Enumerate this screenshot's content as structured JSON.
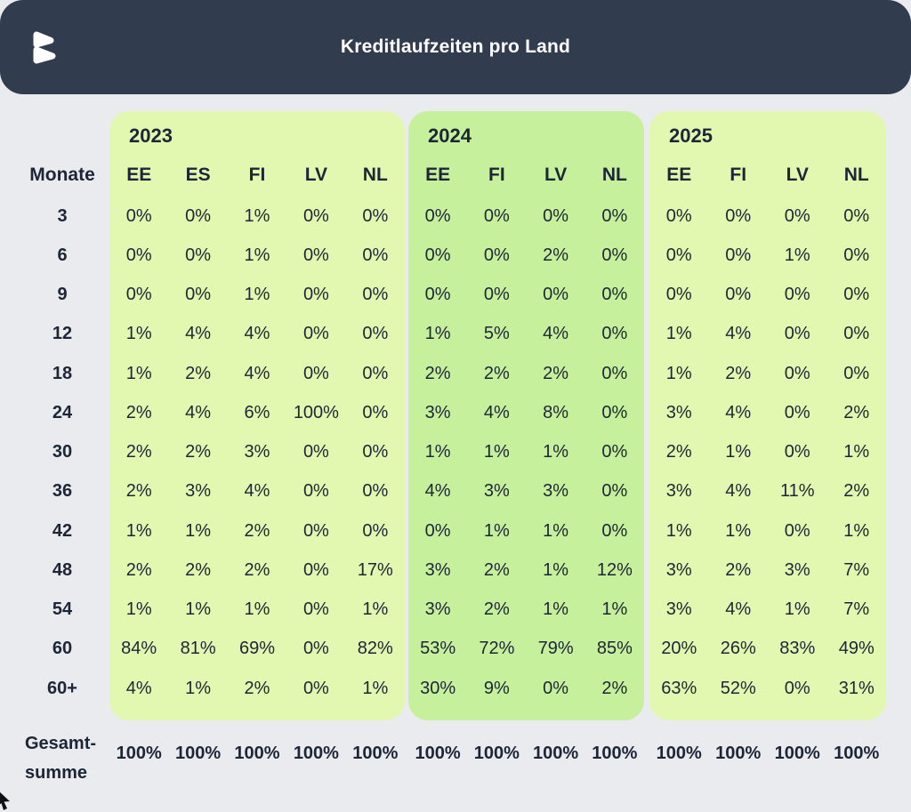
{
  "header": {
    "title": "Kreditlaufzeiten pro Land",
    "logo": "bondora-b-logo"
  },
  "table": {
    "monate_label": "Monate",
    "total_label_lines": [
      "Gesamt-",
      "summe"
    ]
  },
  "colors": {
    "page_bg": "#eaebef",
    "header_bg": "#313c4f",
    "header_text": "#ffffff",
    "panel_light": "#e2f8b0",
    "panel_green": "#c7f09d",
    "text": "#1d2636"
  },
  "chart_data": {
    "type": "table",
    "title": "Kreditlaufzeiten pro Land",
    "row_label_header": "Monate",
    "rows": [
      "3",
      "6",
      "9",
      "12",
      "18",
      "24",
      "30",
      "36",
      "42",
      "48",
      "54",
      "60",
      "60+"
    ],
    "total_row_label": "Gesamtsumme",
    "groups": [
      {
        "year": "2023",
        "panel_tone": "light",
        "countries": [
          "EE",
          "ES",
          "FI",
          "LV",
          "NL"
        ],
        "values": [
          [
            "0%",
            "0%",
            "1%",
            "0%",
            "0%"
          ],
          [
            "0%",
            "0%",
            "1%",
            "0%",
            "0%"
          ],
          [
            "0%",
            "0%",
            "1%",
            "0%",
            "0%"
          ],
          [
            "1%",
            "4%",
            "4%",
            "0%",
            "0%"
          ],
          [
            "1%",
            "2%",
            "4%",
            "0%",
            "0%"
          ],
          [
            "2%",
            "4%",
            "6%",
            "100%",
            "0%"
          ],
          [
            "2%",
            "2%",
            "3%",
            "0%",
            "0%"
          ],
          [
            "2%",
            "3%",
            "4%",
            "0%",
            "0%"
          ],
          [
            "1%",
            "1%",
            "2%",
            "0%",
            "0%"
          ],
          [
            "2%",
            "2%",
            "2%",
            "0%",
            "17%"
          ],
          [
            "1%",
            "1%",
            "1%",
            "0%",
            "1%"
          ],
          [
            "84%",
            "81%",
            "69%",
            "0%",
            "82%"
          ],
          [
            "4%",
            "1%",
            "2%",
            "0%",
            "1%"
          ]
        ],
        "totals": [
          "100%",
          "100%",
          "100%",
          "100%",
          "100%"
        ]
      },
      {
        "year": "2024",
        "panel_tone": "green",
        "countries": [
          "EE",
          "FI",
          "LV",
          "NL"
        ],
        "values": [
          [
            "0%",
            "0%",
            "0%",
            "0%"
          ],
          [
            "0%",
            "0%",
            "2%",
            "0%"
          ],
          [
            "0%",
            "0%",
            "0%",
            "0%"
          ],
          [
            "1%",
            "5%",
            "4%",
            "0%"
          ],
          [
            "2%",
            "2%",
            "2%",
            "0%"
          ],
          [
            "3%",
            "4%",
            "8%",
            "0%"
          ],
          [
            "1%",
            "1%",
            "1%",
            "0%"
          ],
          [
            "4%",
            "3%",
            "3%",
            "0%"
          ],
          [
            "0%",
            "1%",
            "1%",
            "0%"
          ],
          [
            "3%",
            "2%",
            "1%",
            "12%"
          ],
          [
            "3%",
            "2%",
            "1%",
            "1%"
          ],
          [
            "53%",
            "72%",
            "79%",
            "85%"
          ],
          [
            "30%",
            "9%",
            "0%",
            "2%"
          ]
        ],
        "totals": [
          "100%",
          "100%",
          "100%",
          "100%"
        ]
      },
      {
        "year": "2025",
        "panel_tone": "light",
        "countries": [
          "EE",
          "FI",
          "LV",
          "NL"
        ],
        "values": [
          [
            "0%",
            "0%",
            "0%",
            "0%"
          ],
          [
            "0%",
            "0%",
            "1%",
            "0%"
          ],
          [
            "0%",
            "0%",
            "0%",
            "0%"
          ],
          [
            "1%",
            "4%",
            "0%",
            "0%"
          ],
          [
            "1%",
            "2%",
            "0%",
            "0%"
          ],
          [
            "3%",
            "4%",
            "0%",
            "2%"
          ],
          [
            "2%",
            "1%",
            "0%",
            "1%"
          ],
          [
            "3%",
            "4%",
            "11%",
            "2%"
          ],
          [
            "1%",
            "1%",
            "0%",
            "1%"
          ],
          [
            "3%",
            "2%",
            "3%",
            "7%"
          ],
          [
            "3%",
            "4%",
            "1%",
            "7%"
          ],
          [
            "20%",
            "26%",
            "83%",
            "49%"
          ],
          [
            "63%",
            "52%",
            "0%",
            "31%"
          ]
        ],
        "totals": [
          "100%",
          "100%",
          "100%",
          "100%"
        ]
      }
    ]
  }
}
